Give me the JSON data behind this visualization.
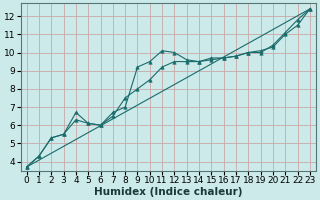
{
  "xlabel": "Humidex (Indice chaleur)",
  "background_color": "#cceaea",
  "grid_color": "#c8a8a8",
  "line_color": "#1a6b6b",
  "xlim": [
    -0.5,
    23.5
  ],
  "ylim": [
    3.5,
    12.7
  ],
  "xticks": [
    0,
    1,
    2,
    3,
    4,
    5,
    6,
    7,
    8,
    9,
    10,
    11,
    12,
    13,
    14,
    15,
    16,
    17,
    18,
    19,
    20,
    21,
    22,
    23
  ],
  "yticks": [
    4,
    5,
    6,
    7,
    8,
    9,
    10,
    11,
    12
  ],
  "series1_x": [
    0,
    1,
    2,
    3,
    4,
    5,
    6,
    7,
    8,
    9,
    10,
    11,
    12,
    13,
    14,
    15,
    16,
    17,
    18,
    19,
    20,
    21,
    22,
    23
  ],
  "series1_y": [
    3.7,
    4.3,
    5.3,
    5.5,
    6.7,
    6.1,
    6.0,
    6.7,
    7.0,
    9.2,
    9.5,
    10.1,
    10.0,
    9.6,
    9.5,
    9.7,
    9.7,
    9.8,
    10.0,
    10.0,
    10.4,
    11.1,
    11.8,
    12.4
  ],
  "series2_x": [
    0,
    1,
    2,
    3,
    4,
    5,
    6,
    7,
    8,
    9,
    10,
    11,
    12,
    13,
    14,
    15,
    16,
    17,
    18,
    19,
    20,
    21,
    22,
    23
  ],
  "series2_y": [
    3.7,
    4.3,
    5.3,
    5.5,
    6.3,
    6.1,
    6.0,
    6.5,
    7.5,
    8.0,
    8.5,
    9.2,
    9.5,
    9.5,
    9.5,
    9.6,
    9.7,
    9.8,
    10.0,
    10.1,
    10.3,
    11.0,
    11.5,
    12.4
  ],
  "series3_x": [
    0,
    23
  ],
  "series3_y": [
    3.7,
    12.4
  ],
  "tick_fontsize": 6.5,
  "xlabel_fontsize": 7.5
}
